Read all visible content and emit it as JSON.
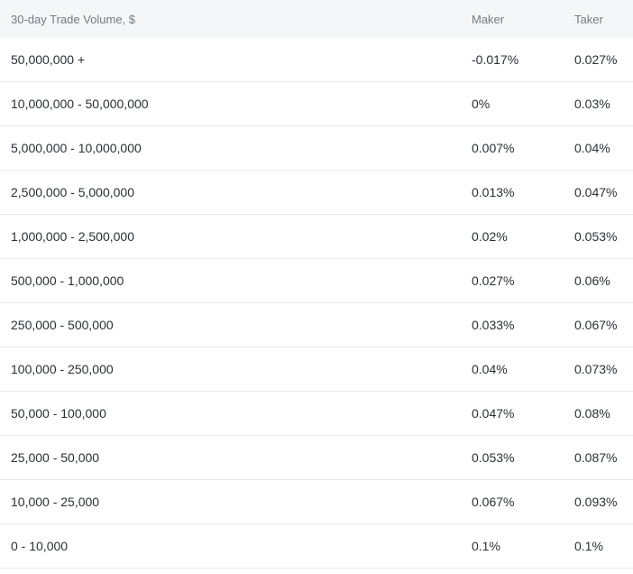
{
  "table": {
    "headers": {
      "volume": "30-day Trade Volume, $",
      "maker": "Maker",
      "taker": "Taker"
    },
    "rows": [
      {
        "volume": "50,000,000 +",
        "maker": "-0.017%",
        "taker": "0.027%"
      },
      {
        "volume": "10,000,000 - 50,000,000",
        "maker": "0%",
        "taker": "0.03%"
      },
      {
        "volume": "5,000,000 - 10,000,000",
        "maker": "0.007%",
        "taker": "0.04%"
      },
      {
        "volume": "2,500,000 - 5,000,000",
        "maker": "0.013%",
        "taker": "0.047%"
      },
      {
        "volume": "1,000,000 - 2,500,000",
        "maker": "0.02%",
        "taker": "0.053%"
      },
      {
        "volume": "500,000 - 1,000,000",
        "maker": "0.027%",
        "taker": "0.06%"
      },
      {
        "volume": "250,000 - 500,000",
        "maker": "0.033%",
        "taker": "0.067%"
      },
      {
        "volume": "100,000 - 250,000",
        "maker": "0.04%",
        "taker": "0.073%"
      },
      {
        "volume": "50,000 - 100,000",
        "maker": "0.047%",
        "taker": "0.08%"
      },
      {
        "volume": "25,000 - 50,000",
        "maker": "0.053%",
        "taker": "0.087%"
      },
      {
        "volume": "10,000 - 25,000",
        "maker": "0.067%",
        "taker": "0.093%"
      },
      {
        "volume": "0 - 10,000",
        "maker": "0.1%",
        "taker": "0.1%"
      }
    ]
  },
  "colors": {
    "header_bg": "#f5f6f7",
    "header_text": "#727b85",
    "row_text": "#2b2f36",
    "divider": "#e7e9ec"
  }
}
